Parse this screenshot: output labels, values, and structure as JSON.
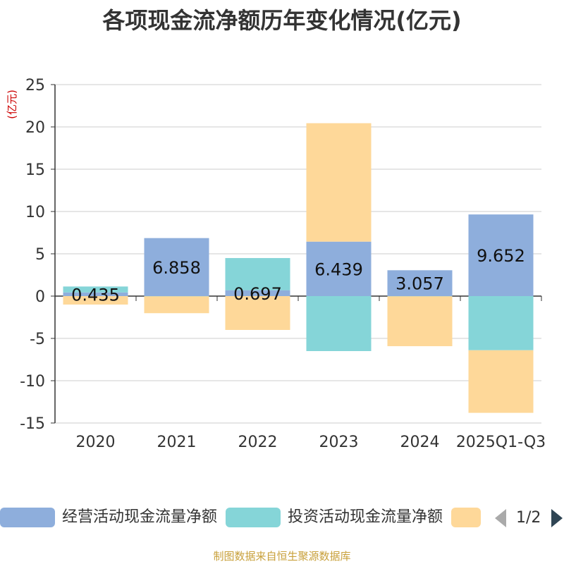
{
  "title": "各项现金流净额历年变化情况(亿元)",
  "footer": "制图数据来自恒生聚源数据库",
  "legend": {
    "items": [
      {
        "label": "经营活动现金流量净额",
        "color": "#8eaedc"
      },
      {
        "label": "投资活动现金流量净额",
        "color": "#85d5d8"
      },
      {
        "label": "",
        "color": "#fed899"
      }
    ],
    "page": "1/2"
  },
  "chart_data": {
    "type": "bar",
    "stacked": true,
    "title": "各项现金流净额历年变化情况(亿元)",
    "ylabel": "(亿元)",
    "ylim": [
      -15,
      25
    ],
    "yticks": [
      25,
      20,
      15,
      10,
      5,
      0,
      -5,
      -10,
      -15
    ],
    "ytick_labels": [
      "25",
      "20",
      "15",
      "10",
      "5",
      "0",
      "-5",
      "-10",
      "-15"
    ],
    "categories": [
      "2020",
      "2021",
      "2022",
      "2023",
      "2024",
      "2025Q1-Q3"
    ],
    "series": [
      {
        "name": "经营活动现金流量净额",
        "color": "#8eaedc",
        "values": [
          0.435,
          6.858,
          0.697,
          6.439,
          3.057,
          9.652
        ],
        "data_labels": [
          "0.435",
          "6.858",
          "0.697",
          "6.439",
          "3.057",
          "9.652"
        ]
      },
      {
        "name": "投资活动现金流量净额",
        "color": "#85d5d8",
        "values": [
          0.7,
          -0.02,
          3.8,
          -6.5,
          -0.02,
          -6.4
        ]
      },
      {
        "name": "",
        "color": "#fed899",
        "values": [
          -1.0,
          -2.0,
          -4.0,
          14.0,
          -5.9,
          -7.4
        ]
      }
    ]
  }
}
